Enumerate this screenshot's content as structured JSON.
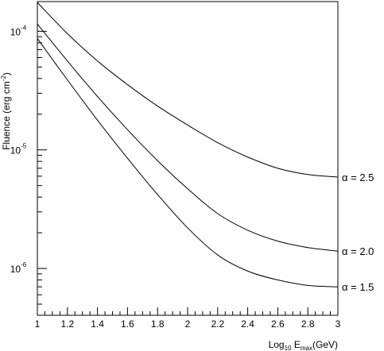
{
  "chart_data": {
    "type": "line",
    "xlabel": {
      "base": "Log",
      "base_sub": "10",
      "e": " E",
      "e_sub": "max",
      "unit": "(GeV)"
    },
    "ylabel": {
      "text": "Fluence (erg cm",
      "exp": "-2",
      "close": ")"
    },
    "xlim": [
      1,
      3
    ],
    "ylim": [
      4.03e-07,
      0.000178
    ],
    "yscale": "log",
    "x_ticks": [
      1,
      1.2,
      1.4,
      1.6,
      1.8,
      2,
      2.2,
      2.4,
      2.6,
      2.8,
      3
    ],
    "x_tick_labels": [
      "1",
      "1.2",
      "1.4",
      "1.6",
      "1.8",
      "2",
      "2.2",
      "2.4",
      "2.6",
      "2.8",
      "3"
    ],
    "y_ticks": [
      {
        "value": 0.0001,
        "base": "10",
        "exp": "-4"
      },
      {
        "value": 1e-05,
        "base": "10",
        "exp": "-5"
      },
      {
        "value": 1e-06,
        "base": "10",
        "exp": "-6"
      }
    ],
    "grid": false,
    "series": [
      {
        "name": "α = 2.5",
        "x": [
          1,
          1.2,
          1.4,
          1.6,
          1.8,
          2,
          2.2,
          2.4,
          2.6,
          2.8,
          3
        ],
        "values": [
          0.000175,
          9.55e-05,
          5.62e-05,
          3.55e-05,
          2.34e-05,
          1.62e-05,
          1.15e-05,
          8.7e-06,
          7e-06,
          6.2e-06,
          5.9e-06
        ]
      },
      {
        "name": "α = 2.0",
        "x": [
          1,
          1.2,
          1.4,
          1.6,
          1.8,
          2,
          2.2,
          2.4,
          2.6,
          2.8,
          3
        ],
        "values": [
          0.000115,
          5.62e-05,
          2.82e-05,
          1.48e-05,
          8.1e-06,
          4.7e-06,
          2.9e-06,
          2.1e-06,
          1.7e-06,
          1.5e-06,
          1.4e-06
        ]
      },
      {
        "name": "α = 1.5",
        "x": [
          1,
          1.2,
          1.4,
          1.6,
          1.8,
          2,
          2.2,
          2.4,
          2.6,
          2.8,
          3
        ],
        "values": [
          8.7e-05,
          3.89e-05,
          1.78e-05,
          8.5e-06,
          4.2e-06,
          2.2e-06,
          1.3e-06,
          9.5e-07,
          8e-07,
          7.2e-07,
          7e-07
        ]
      }
    ]
  }
}
